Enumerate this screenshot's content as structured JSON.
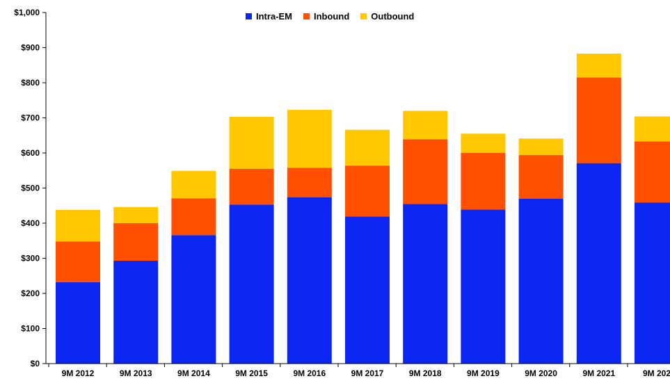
{
  "chart_data": {
    "type": "bar",
    "stacked": true,
    "categories": [
      "9M 2012",
      "9M 2013",
      "9M 2014",
      "9M 2015",
      "9M 2016",
      "9M 2017",
      "9M 2018",
      "9M 2019",
      "9M 2020",
      "9M 2021",
      "9M 202"
    ],
    "series": [
      {
        "name": "Intra-EM",
        "color": "#0a26f0",
        "values": [
          232,
          293,
          366,
          453,
          474,
          419,
          455,
          439,
          470,
          571,
          459
        ]
      },
      {
        "name": "Inbound",
        "color": "#ff4f00",
        "values": [
          116,
          107,
          105,
          102,
          84,
          145,
          184,
          161,
          124,
          244,
          174
        ]
      },
      {
        "name": "Outbound",
        "color": "#ffc800",
        "values": [
          90,
          46,
          78,
          148,
          165,
          102,
          81,
          55,
          47,
          68,
          71
        ]
      }
    ],
    "y_ticks": [
      "$0",
      "$100",
      "$200",
      "$300",
      "$400",
      "$500",
      "$600",
      "$700",
      "$800",
      "$900",
      "$1,000"
    ],
    "ylim": [
      0,
      1000
    ],
    "legend_position": "top",
    "grid": false
  }
}
